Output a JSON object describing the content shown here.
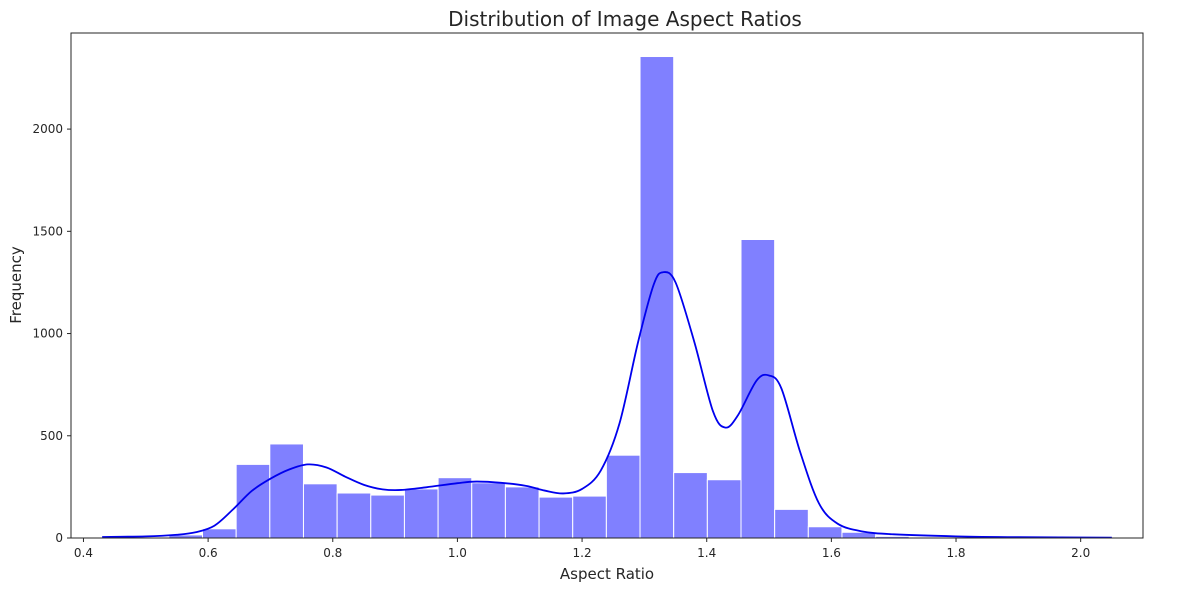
{
  "chart_data": {
    "type": "bar",
    "title": "Distribution of Image Aspect Ratios",
    "xlabel": "Aspect Ratio",
    "ylabel": "Frequency",
    "xlim": [
      0.38,
      2.1
    ],
    "ylim": [
      0,
      2470
    ],
    "x_ticks": [
      0.4,
      0.6,
      0.8,
      1.0,
      1.2,
      1.4,
      1.6,
      1.8,
      2.0
    ],
    "x_tick_labels": [
      "0.4",
      "0.6",
      "0.8",
      "1.0",
      "1.2",
      "1.4",
      "1.6",
      "1.8",
      "2.0"
    ],
    "y_ticks": [
      0,
      500,
      1000,
      1500,
      2000
    ],
    "y_tick_labels": [
      "0",
      "500",
      "1000",
      "1500",
      "2000"
    ],
    "grid": false,
    "bar_color": "#8080ff",
    "bar_edge_color": "#ffffff",
    "kde_color": "#0000ee",
    "bins": [
      {
        "x0": 0.429,
        "x1": 0.483,
        "value": 0
      },
      {
        "x0": 0.483,
        "x1": 0.537,
        "value": 0
      },
      {
        "x0": 0.537,
        "x1": 0.591,
        "value": 15
      },
      {
        "x0": 0.591,
        "x1": 0.645,
        "value": 45
      },
      {
        "x0": 0.645,
        "x1": 0.699,
        "value": 360
      },
      {
        "x0": 0.699,
        "x1": 0.753,
        "value": 460
      },
      {
        "x0": 0.753,
        "x1": 0.807,
        "value": 265
      },
      {
        "x0": 0.807,
        "x1": 0.861,
        "value": 220
      },
      {
        "x0": 0.861,
        "x1": 0.915,
        "value": 210
      },
      {
        "x0": 0.915,
        "x1": 0.969,
        "value": 240
      },
      {
        "x0": 0.969,
        "x1": 1.023,
        "value": 295
      },
      {
        "x0": 1.023,
        "x1": 1.077,
        "value": 270
      },
      {
        "x0": 1.077,
        "x1": 1.131,
        "value": 250
      },
      {
        "x0": 1.131,
        "x1": 1.185,
        "value": 200
      },
      {
        "x0": 1.185,
        "x1": 1.239,
        "value": 205
      },
      {
        "x0": 1.239,
        "x1": 1.293,
        "value": 405
      },
      {
        "x0": 1.293,
        "x1": 1.347,
        "value": 2355
      },
      {
        "x0": 1.347,
        "x1": 1.401,
        "value": 320
      },
      {
        "x0": 1.401,
        "x1": 1.455,
        "value": 285
      },
      {
        "x0": 1.455,
        "x1": 1.509,
        "value": 1460
      },
      {
        "x0": 1.509,
        "x1": 1.563,
        "value": 140
      },
      {
        "x0": 1.563,
        "x1": 1.617,
        "value": 55
      },
      {
        "x0": 1.617,
        "x1": 1.671,
        "value": 28
      },
      {
        "x0": 1.671,
        "x1": 1.725,
        "value": 8
      },
      {
        "x0": 1.725,
        "x1": 1.779,
        "value": 3
      },
      {
        "x0": 1.779,
        "x1": 1.833,
        "value": 2
      },
      {
        "x0": 1.833,
        "x1": 1.887,
        "value": 1
      },
      {
        "x0": 1.887,
        "x1": 1.941,
        "value": 1
      },
      {
        "x0": 1.941,
        "x1": 1.995,
        "value": 1
      },
      {
        "x0": 1.995,
        "x1": 2.049,
        "value": 1
      }
    ],
    "kde": [
      [
        0.43,
        5
      ],
      [
        0.5,
        8
      ],
      [
        0.55,
        16
      ],
      [
        0.58,
        28
      ],
      [
        0.61,
        60
      ],
      [
        0.64,
        140
      ],
      [
        0.67,
        230
      ],
      [
        0.7,
        290
      ],
      [
        0.73,
        335
      ],
      [
        0.76,
        360
      ],
      [
        0.79,
        345
      ],
      [
        0.82,
        300
      ],
      [
        0.85,
        260
      ],
      [
        0.88,
        238
      ],
      [
        0.91,
        235
      ],
      [
        0.95,
        248
      ],
      [
        1.0,
        268
      ],
      [
        1.03,
        276
      ],
      [
        1.07,
        270
      ],
      [
        1.11,
        255
      ],
      [
        1.14,
        232
      ],
      [
        1.17,
        218
      ],
      [
        1.2,
        240
      ],
      [
        1.23,
        330
      ],
      [
        1.26,
        560
      ],
      [
        1.29,
        960
      ],
      [
        1.315,
        1240
      ],
      [
        1.33,
        1300
      ],
      [
        1.35,
        1250
      ],
      [
        1.38,
        960
      ],
      [
        1.41,
        620
      ],
      [
        1.43,
        540
      ],
      [
        1.45,
        600
      ],
      [
        1.48,
        770
      ],
      [
        1.5,
        795
      ],
      [
        1.52,
        730
      ],
      [
        1.55,
        420
      ],
      [
        1.58,
        170
      ],
      [
        1.61,
        70
      ],
      [
        1.65,
        32
      ],
      [
        1.7,
        18
      ],
      [
        1.8,
        8
      ],
      [
        1.9,
        4
      ],
      [
        2.05,
        2
      ]
    ]
  }
}
